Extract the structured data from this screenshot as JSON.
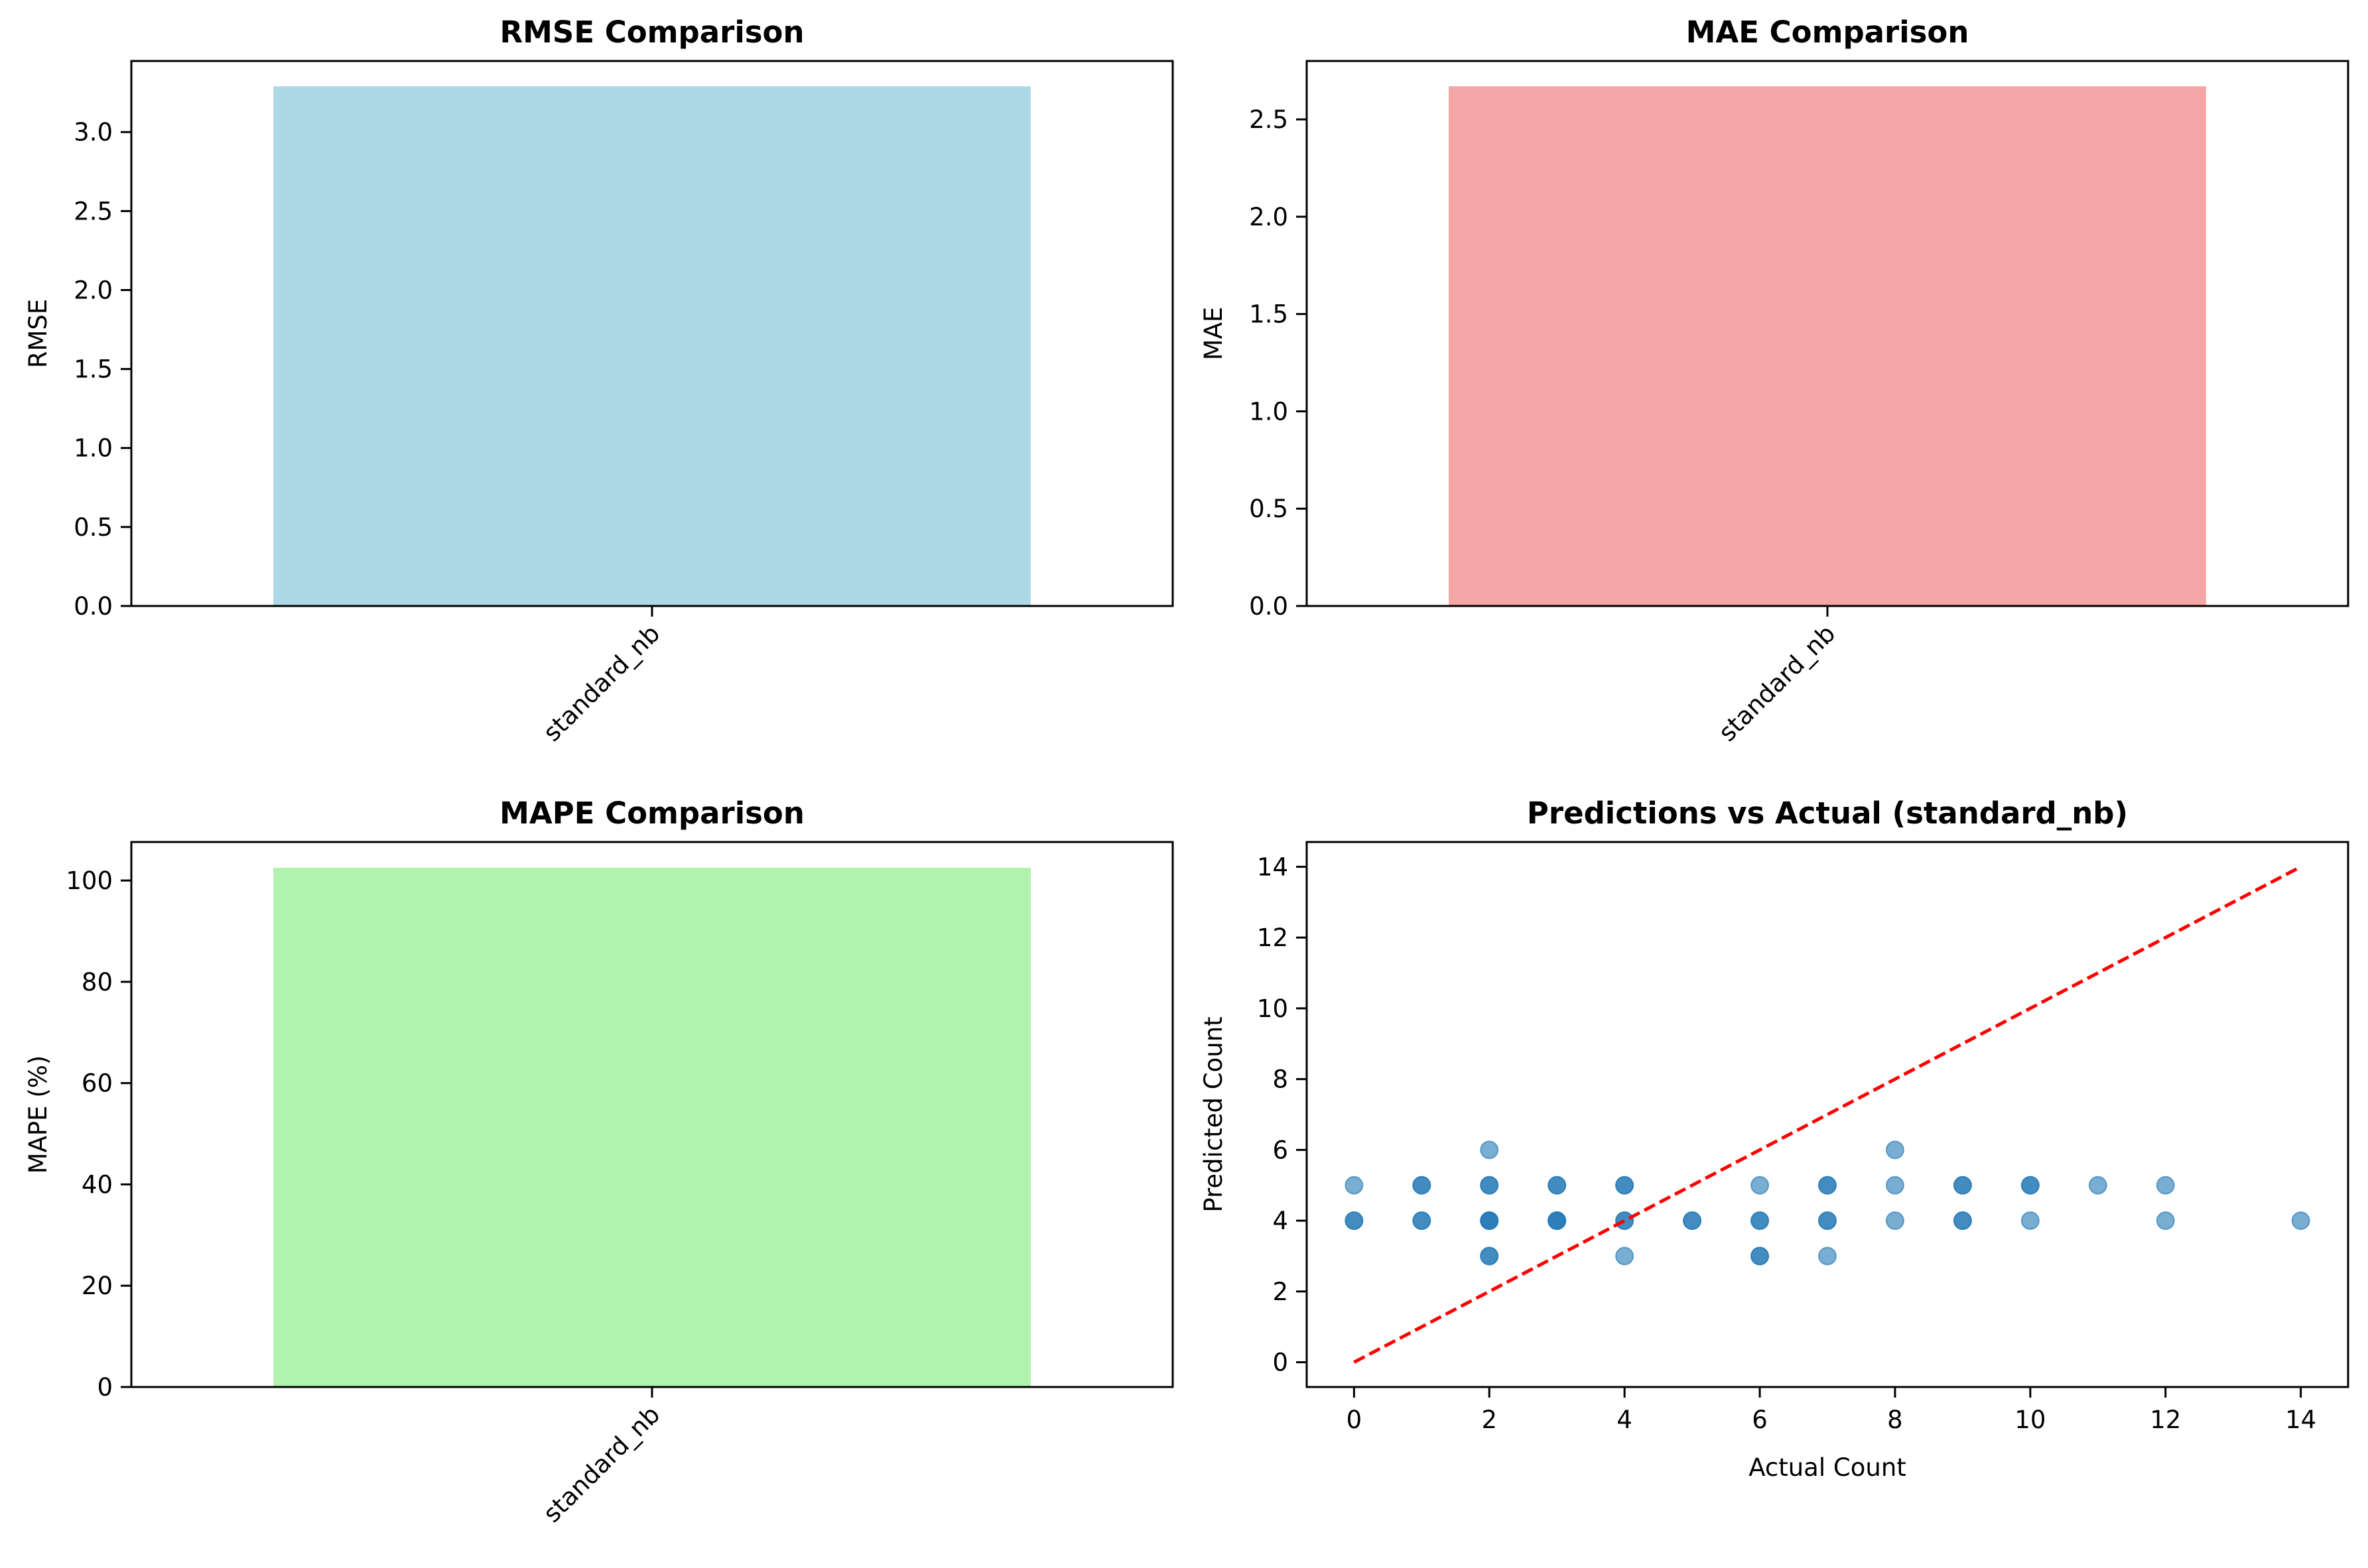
{
  "chart_data": [
    {
      "type": "bar",
      "title": "RMSE Comparison",
      "xlabel": "",
      "ylabel": "RMSE",
      "categories": [
        "standard_nb"
      ],
      "values": [
        3.29
      ],
      "ylim": [
        0,
        3.45
      ],
      "yticks": [
        0.0,
        0.5,
        1.0,
        1.5,
        2.0,
        2.5,
        3.0
      ],
      "ytick_labels": [
        "0.0",
        "0.5",
        "1.0",
        "1.5",
        "2.0",
        "2.5",
        "3.0"
      ],
      "color": "#add8e6",
      "grid": false
    },
    {
      "type": "bar",
      "title": "MAE Comparison",
      "xlabel": "",
      "ylabel": "MAE",
      "categories": [
        "standard_nb"
      ],
      "values": [
        2.67
      ],
      "ylim": [
        0,
        2.8
      ],
      "yticks": [
        0.0,
        0.5,
        1.0,
        1.5,
        2.0,
        2.5
      ],
      "ytick_labels": [
        "0.0",
        "0.5",
        "1.0",
        "1.5",
        "2.0",
        "2.5"
      ],
      "color": "#f4a6a6",
      "grid": false
    },
    {
      "type": "bar",
      "title": "MAPE Comparison",
      "xlabel": "",
      "ylabel": "MAPE (%)",
      "categories": [
        "standard_nb"
      ],
      "values": [
        102.5
      ],
      "ylim": [
        0,
        107.6
      ],
      "yticks": [
        0,
        20,
        40,
        60,
        80,
        100
      ],
      "ytick_labels": [
        "0",
        "20",
        "40",
        "60",
        "80",
        "100"
      ],
      "color": "#b0f3ae",
      "grid": false
    },
    {
      "type": "scatter",
      "title": "Predictions vs Actual (standard_nb)",
      "xlabel": "Actual Count",
      "ylabel": "Predicted Count",
      "xlim": [
        -0.7,
        14.7
      ],
      "ylim": [
        -0.7,
        14.7
      ],
      "xticks": [
        0,
        2,
        4,
        6,
        8,
        10,
        12,
        14
      ],
      "yticks": [
        0,
        2,
        4,
        6,
        8,
        10,
        12,
        14
      ],
      "xtick_labels": [
        "0",
        "2",
        "4",
        "6",
        "8",
        "10",
        "12",
        "14"
      ],
      "ytick_labels": [
        "0",
        "2",
        "4",
        "6",
        "8",
        "10",
        "12",
        "14"
      ],
      "point_color": "#1f77b4",
      "line_color": "#ff0000",
      "grid": false,
      "points": [
        {
          "x": 0,
          "y": 5
        },
        {
          "x": 0,
          "y": 4
        },
        {
          "x": 0,
          "y": 4
        },
        {
          "x": 1,
          "y": 5
        },
        {
          "x": 1,
          "y": 5
        },
        {
          "x": 1,
          "y": 4
        },
        {
          "x": 1,
          "y": 4
        },
        {
          "x": 2,
          "y": 6
        },
        {
          "x": 2,
          "y": 5
        },
        {
          "x": 2,
          "y": 5
        },
        {
          "x": 2,
          "y": 4
        },
        {
          "x": 2,
          "y": 4
        },
        {
          "x": 2,
          "y": 4
        },
        {
          "x": 2,
          "y": 3
        },
        {
          "x": 2,
          "y": 3
        },
        {
          "x": 3,
          "y": 5
        },
        {
          "x": 3,
          "y": 5
        },
        {
          "x": 3,
          "y": 4
        },
        {
          "x": 3,
          "y": 4
        },
        {
          "x": 3,
          "y": 4
        },
        {
          "x": 4,
          "y": 5
        },
        {
          "x": 4,
          "y": 5
        },
        {
          "x": 4,
          "y": 4
        },
        {
          "x": 4,
          "y": 4
        },
        {
          "x": 4,
          "y": 3
        },
        {
          "x": 5,
          "y": 4
        },
        {
          "x": 5,
          "y": 4
        },
        {
          "x": 6,
          "y": 5
        },
        {
          "x": 6,
          "y": 4
        },
        {
          "x": 6,
          "y": 4
        },
        {
          "x": 6,
          "y": 3
        },
        {
          "x": 6,
          "y": 3
        },
        {
          "x": 7,
          "y": 5
        },
        {
          "x": 7,
          "y": 5
        },
        {
          "x": 7,
          "y": 4
        },
        {
          "x": 7,
          "y": 4
        },
        {
          "x": 7,
          "y": 3
        },
        {
          "x": 8,
          "y": 6
        },
        {
          "x": 8,
          "y": 5
        },
        {
          "x": 8,
          "y": 4
        },
        {
          "x": 9,
          "y": 5
        },
        {
          "x": 9,
          "y": 5
        },
        {
          "x": 9,
          "y": 4
        },
        {
          "x": 9,
          "y": 4
        },
        {
          "x": 10,
          "y": 5
        },
        {
          "x": 10,
          "y": 5
        },
        {
          "x": 10,
          "y": 4
        },
        {
          "x": 11,
          "y": 5
        },
        {
          "x": 12,
          "y": 5
        },
        {
          "x": 12,
          "y": 4
        },
        {
          "x": 14,
          "y": 4
        }
      ],
      "reference_line": {
        "x": [
          0,
          14
        ],
        "y": [
          0,
          14
        ]
      }
    }
  ]
}
